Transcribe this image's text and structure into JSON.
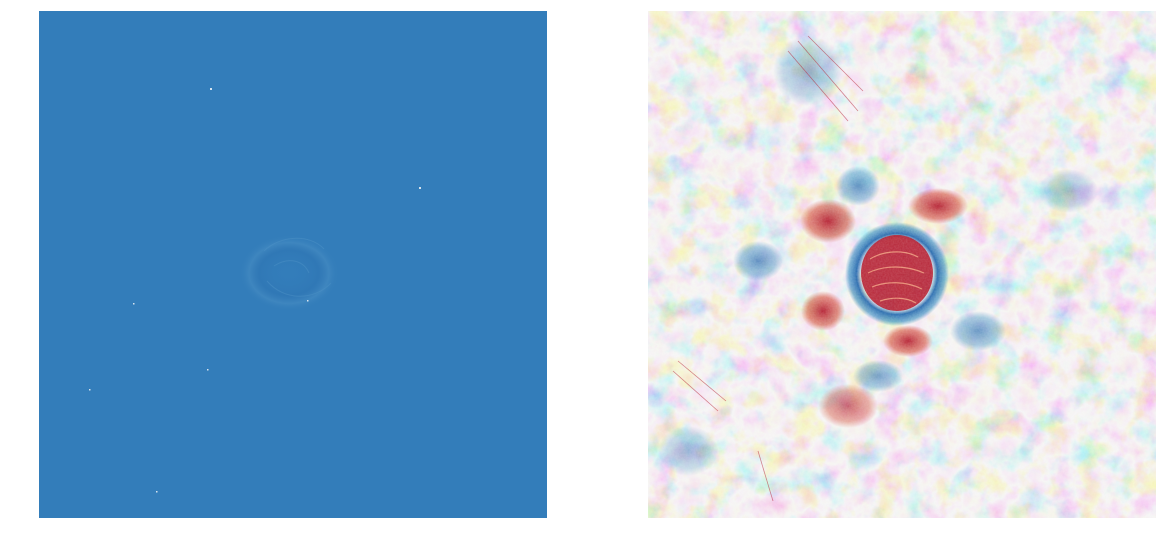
{
  "figure": {
    "panels": [
      {
        "name": "left-image",
        "colormap": "RdBu",
        "dominant_color": "#337dba",
        "description_colors": [
          "#337dba",
          "#2b6fae",
          "#4a8fc4",
          "#e8eef4"
        ]
      },
      {
        "name": "right-image",
        "colormap": "RdBu",
        "background_color": "#f2f2f2",
        "colors": {
          "red_strong": "#b2182b",
          "red": "#d6604d",
          "red_light": "#f4a582",
          "neutral": "#f2f2f2",
          "blue_light": "#92c5de",
          "blue": "#4393c3",
          "blue_strong": "#2166ac"
        }
      }
    ]
  }
}
